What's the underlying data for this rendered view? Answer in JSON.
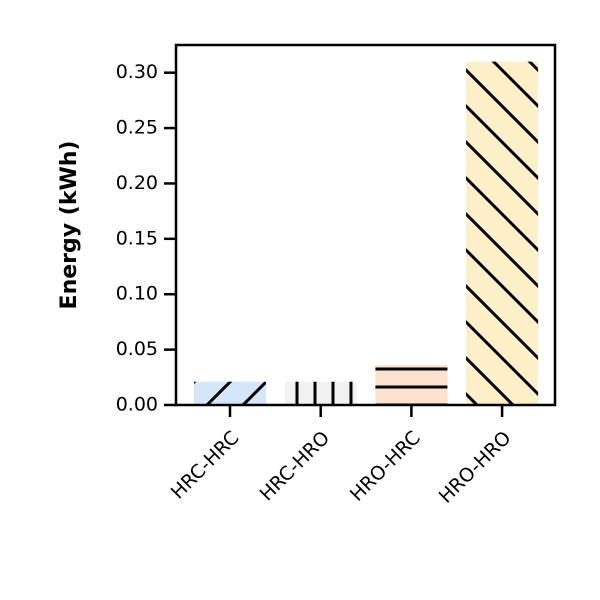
{
  "chart_data": {
    "type": "bar",
    "categories": [
      "HRC-HRC",
      "HRC-HRO",
      "HRO-HRC",
      "HRO-HRO"
    ],
    "values": [
      0.021,
      0.021,
      0.036,
      0.31
    ],
    "bar_colors": [
      "#d6e6f9",
      "#f2f2f2",
      "#fde3cf",
      "#fdf0c8"
    ],
    "bar_hatches": [
      "diagonal-up",
      "vertical",
      "horizontal",
      "diagonal-down"
    ],
    "xlabel": "",
    "ylabel": "Energy (kWh)",
    "ylim": [
      0,
      0.325
    ],
    "yticks": [
      0.0,
      0.05,
      0.1,
      0.15,
      0.2,
      0.25,
      0.3
    ],
    "ytick_labels": [
      "0.00",
      "0.05",
      "0.10",
      "0.15",
      "0.20",
      "0.25",
      "0.30"
    ],
    "grid": false,
    "title": ""
  }
}
